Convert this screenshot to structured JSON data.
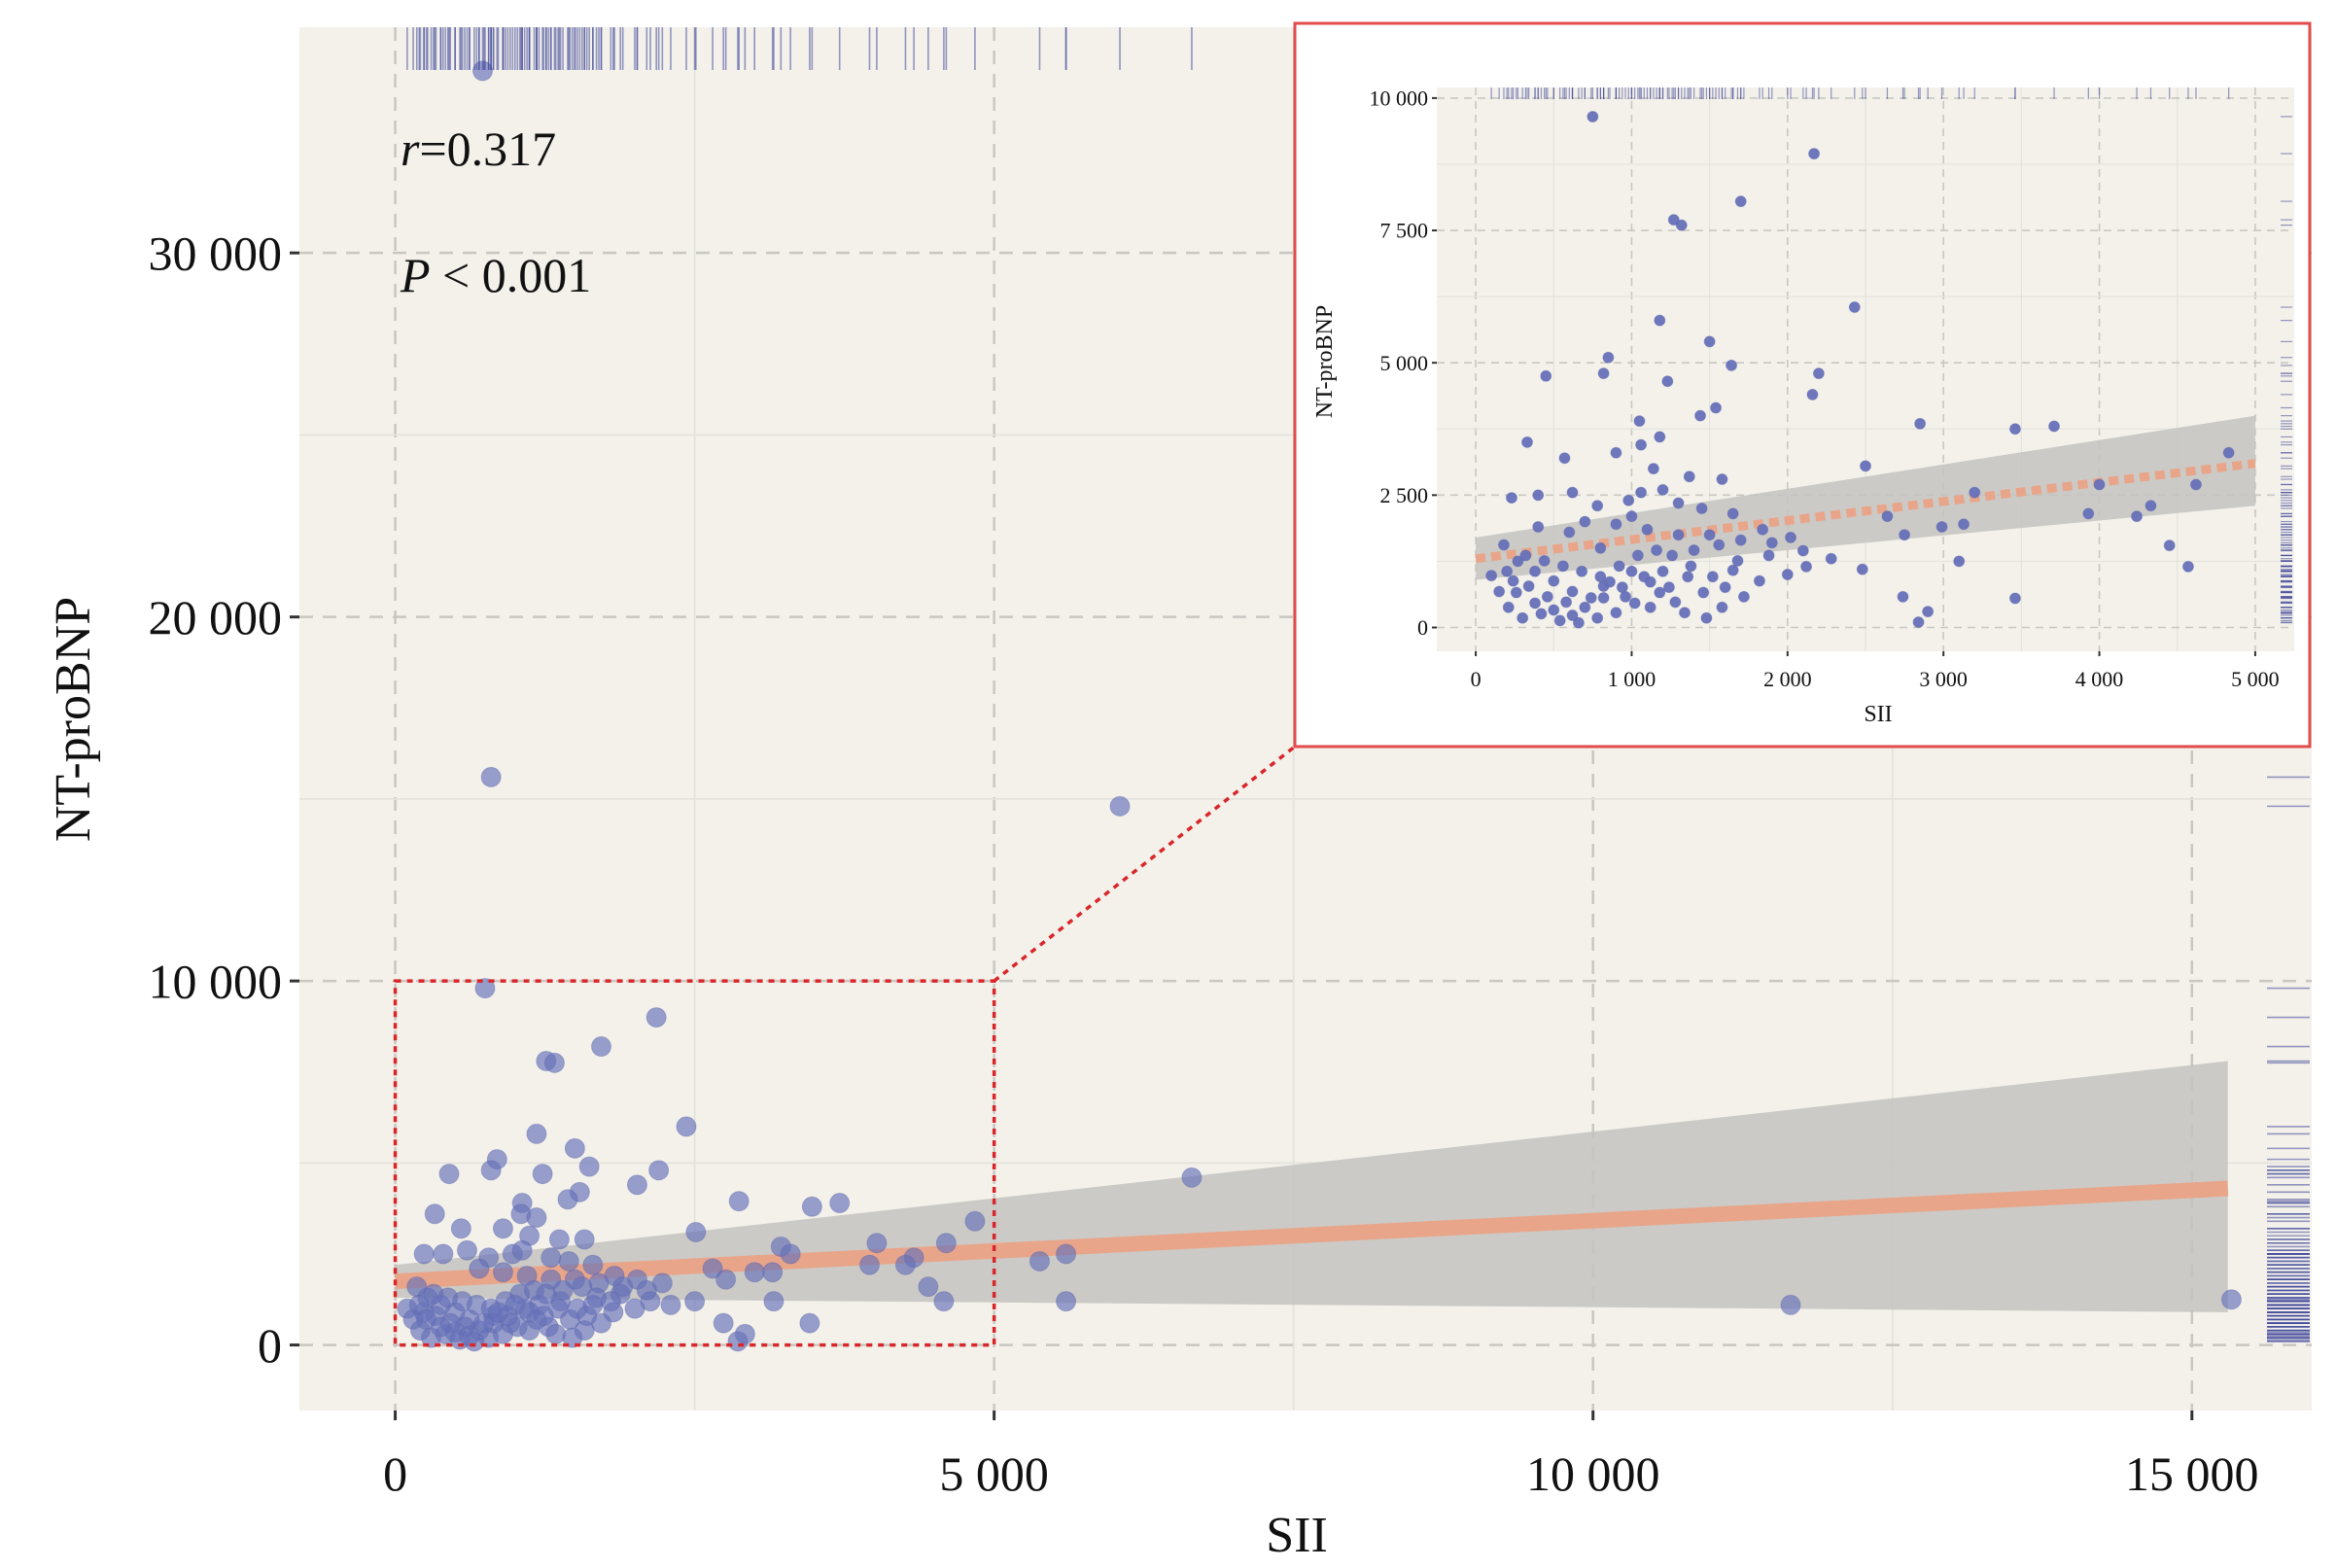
{
  "chart_data": [
    {
      "type": "scatter",
      "xlabel": "SII",
      "ylabel": "NT-proBNP",
      "xlim": [
        -800,
        16000
      ],
      "ylim": [
        -1800,
        36200
      ],
      "x_ticks": [
        0,
        5000,
        10000,
        15000
      ],
      "x_tick_labels": [
        "0",
        "5 000",
        "10 000",
        "15 000"
      ],
      "y_ticks": [
        0,
        10000,
        20000,
        30000
      ],
      "y_tick_labels": [
        "0",
        "10 000",
        "20 000",
        "30 000"
      ],
      "grid": true,
      "annotations": {
        "r_symbol": "r",
        "r_value": "=0.317",
        "p_symbol": "P",
        "p_value": " < 0.001"
      },
      "fit": {
        "x": [
          0,
          15300
        ],
        "y": [
          1750,
          4300
        ],
        "ci_low_end": 900,
        "ci_high_end": 7800,
        "ci_at_zero": [
          1300,
          2200
        ]
      },
      "zoom_region": {
        "x": [
          0,
          5000
        ],
        "y": [
          0,
          10000
        ]
      },
      "points": [
        [
          730,
          35000
        ],
        [
          800,
          15600
        ],
        [
          6050,
          14800
        ],
        [
          750,
          9800
        ],
        [
          2180,
          9000
        ],
        [
          1260,
          7800
        ],
        [
          1330,
          7750
        ],
        [
          1720,
          8200
        ],
        [
          2430,
          6000
        ],
        [
          1180,
          5800
        ],
        [
          1500,
          5400
        ],
        [
          850,
          5100
        ],
        [
          800,
          4800
        ],
        [
          450,
          4700
        ],
        [
          1620,
          4900
        ],
        [
          1230,
          4700
        ],
        [
          2200,
          4800
        ],
        [
          6650,
          4600
        ],
        [
          1060,
          3900
        ],
        [
          1540,
          4200
        ],
        [
          2020,
          4400
        ],
        [
          1440,
          4000
        ],
        [
          3710,
          3900
        ],
        [
          3480,
          3800
        ],
        [
          2870,
          3950
        ],
        [
          1050,
          3600
        ],
        [
          330,
          3600
        ],
        [
          1180,
          3500
        ],
        [
          900,
          3200
        ],
        [
          550,
          3200
        ],
        [
          1120,
          3000
        ],
        [
          1370,
          2900
        ],
        [
          1580,
          2900
        ],
        [
          2510,
          3100
        ],
        [
          3220,
          2700
        ],
        [
          600,
          2600
        ],
        [
          780,
          2400
        ],
        [
          400,
          2500
        ],
        [
          240,
          2500
        ],
        [
          980,
          2500
        ],
        [
          1060,
          2600
        ],
        [
          4020,
          2800
        ],
        [
          4600,
          2800
        ],
        [
          4840,
          3400
        ],
        [
          1300,
          2400
        ],
        [
          1450,
          2300
        ],
        [
          1650,
          2200
        ],
        [
          1830,
          1900
        ],
        [
          2020,
          1800
        ],
        [
          2230,
          1700
        ],
        [
          2650,
          2100
        ],
        [
          3000,
          2000
        ],
        [
          3150,
          2000
        ],
        [
          3960,
          2200
        ],
        [
          4330,
          2400
        ],
        [
          4260,
          2200
        ],
        [
          700,
          2100
        ],
        [
          900,
          2000
        ],
        [
          1100,
          1900
        ],
        [
          1300,
          1800
        ],
        [
          1500,
          1800
        ],
        [
          1700,
          1700
        ],
        [
          1900,
          1600
        ],
        [
          2100,
          1500
        ],
        [
          2500,
          1200
        ],
        [
          2760,
          1800
        ],
        [
          3160,
          1200
        ],
        [
          4450,
          1600
        ],
        [
          4580,
          1200
        ],
        [
          5380,
          2300
        ],
        [
          5600,
          2500
        ],
        [
          5600,
          1200
        ],
        [
          11650,
          1100
        ],
        [
          15330,
          1250
        ],
        [
          3460,
          600
        ],
        [
          2920,
          300
        ],
        [
          2740,
          600
        ],
        [
          2860,
          100
        ],
        [
          2130,
          1200
        ],
        [
          1820,
          900
        ],
        [
          1650,
          1100
        ],
        [
          1460,
          700
        ],
        [
          1280,
          500
        ],
        [
          1120,
          400
        ],
        [
          960,
          600
        ],
        [
          820,
          800
        ],
        [
          620,
          700
        ],
        [
          500,
          900
        ],
        [
          380,
          1100
        ],
        [
          270,
          1300
        ],
        [
          180,
          1600
        ],
        [
          100,
          1000
        ],
        [
          150,
          700
        ],
        [
          210,
          400
        ],
        [
          300,
          200
        ],
        [
          420,
          300
        ],
        [
          540,
          150
        ],
        [
          660,
          100
        ],
        [
          780,
          200
        ],
        [
          900,
          300
        ],
        [
          1020,
          500
        ],
        [
          1180,
          700
        ],
        [
          1340,
          300
        ],
        [
          1480,
          200
        ],
        [
          1580,
          400
        ],
        [
          1720,
          600
        ],
        [
          240,
          900
        ],
        [
          340,
          800
        ],
        [
          460,
          600
        ],
        [
          580,
          500
        ],
        [
          700,
          400
        ],
        [
          820,
          600
        ],
        [
          940,
          800
        ],
        [
          1080,
          1000
        ],
        [
          1200,
          1100
        ],
        [
          1380,
          1200
        ],
        [
          1520,
          1000
        ],
        [
          1680,
          1300
        ],
        [
          1880,
          1400
        ],
        [
          320,
          1400
        ],
        [
          440,
          1300
        ],
        [
          560,
          1200
        ],
        [
          680,
          1100
        ],
        [
          800,
          1000
        ],
        [
          920,
          1200
        ],
        [
          1040,
          1400
        ],
        [
          1160,
          1500
        ],
        [
          1260,
          1400
        ],
        [
          1400,
          1500
        ],
        [
          1560,
          1600
        ],
        [
          200,
          1100
        ],
        [
          260,
          700
        ],
        [
          380,
          500
        ],
        [
          500,
          350
        ],
        [
          620,
          250
        ],
        [
          740,
          600
        ],
        [
          860,
          900
        ],
        [
          1000,
          1100
        ],
        [
          1120,
          900
        ],
        [
          1240,
          800
        ],
        [
          1360,
          1000
        ],
        [
          1600,
          800
        ],
        [
          1800,
          1200
        ],
        [
          2000,
          1000
        ],
        [
          2300,
          1100
        ],
        [
          3300,
          2500
        ]
      ]
    },
    {
      "type": "scatter",
      "xlabel": "SII",
      "ylabel": "NT-proBNP",
      "xlim": [
        -250,
        5250
      ],
      "ylim": [
        -450,
        10200
      ],
      "x_ticks": [
        0,
        1000,
        2000,
        3000,
        4000,
        5000
      ],
      "x_tick_labels": [
        "0",
        "1 000",
        "2 000",
        "3 000",
        "4 000",
        "5 000"
      ],
      "y_ticks": [
        0,
        2500,
        5000,
        7500,
        10000
      ],
      "y_tick_labels": [
        "0",
        "2 500",
        "5 000",
        "7 500",
        "10 000"
      ],
      "grid": true,
      "fit": {
        "x": [
          0,
          5000
        ],
        "y": [
          1300,
          3100
        ],
        "ci_low_end": 2300,
        "ci_high_end": 4000,
        "ci_at_zero": [
          900,
          1700
        ]
      },
      "points": [
        [
          750,
          9650
        ],
        [
          2170,
          8950
        ],
        [
          1700,
          8050
        ],
        [
          1270,
          7700
        ],
        [
          1320,
          7600
        ],
        [
          2430,
          6050
        ],
        [
          1180,
          5800
        ],
        [
          1500,
          5400
        ],
        [
          850,
          5100
        ],
        [
          820,
          4800
        ],
        [
          450,
          4750
        ],
        [
          1640,
          4950
        ],
        [
          1230,
          4650
        ],
        [
          2200,
          4800
        ],
        [
          2160,
          4400
        ],
        [
          1050,
          3900
        ],
        [
          1540,
          4150
        ],
        [
          1440,
          4000
        ],
        [
          3710,
          3800
        ],
        [
          3460,
          3750
        ],
        [
          2850,
          3850
        ],
        [
          1060,
          3450
        ],
        [
          330,
          3500
        ],
        [
          1180,
          3600
        ],
        [
          900,
          3300
        ],
        [
          570,
          3200
        ],
        [
          1140,
          3000
        ],
        [
          1370,
          2850
        ],
        [
          1580,
          2800
        ],
        [
          2500,
          3050
        ],
        [
          3200,
          2550
        ],
        [
          620,
          2550
        ],
        [
          780,
          2300
        ],
        [
          400,
          2500
        ],
        [
          230,
          2450
        ],
        [
          980,
          2400
        ],
        [
          1060,
          2550
        ],
        [
          4000,
          2700
        ],
        [
          4620,
          2700
        ],
        [
          4830,
          3300
        ],
        [
          1300,
          2350
        ],
        [
          1450,
          2250
        ],
        [
          1650,
          2150
        ],
        [
          1840,
          1850
        ],
        [
          2020,
          1700
        ],
        [
          2280,
          1300
        ],
        [
          2640,
          2100
        ],
        [
          2990,
          1900
        ],
        [
          3130,
          1950
        ],
        [
          3930,
          2150
        ],
        [
          4330,
          2300
        ],
        [
          4240,
          2100
        ],
        [
          700,
          2000
        ],
        [
          900,
          1950
        ],
        [
          1100,
          1850
        ],
        [
          1300,
          1750
        ],
        [
          1500,
          1750
        ],
        [
          1700,
          1650
        ],
        [
          1900,
          1600
        ],
        [
          2100,
          1450
        ],
        [
          2480,
          1100
        ],
        [
          2750,
          1750
        ],
        [
          3100,
          1250
        ],
        [
          4450,
          1550
        ],
        [
          4570,
          1150
        ],
        [
          3460,
          550
        ],
        [
          2900,
          300
        ],
        [
          2740,
          580
        ],
        [
          2840,
          100
        ],
        [
          2120,
          1150
        ],
        [
          1820,
          880
        ],
        [
          1650,
          1080
        ],
        [
          1460,
          660
        ],
        [
          1280,
          480
        ],
        [
          1120,
          380
        ],
        [
          960,
          580
        ],
        [
          820,
          780
        ],
        [
          620,
          680
        ],
        [
          500,
          880
        ],
        [
          380,
          1060
        ],
        [
          270,
          1250
        ],
        [
          180,
          1560
        ],
        [
          100,
          980
        ],
        [
          150,
          680
        ],
        [
          210,
          380
        ],
        [
          300,
          180
        ],
        [
          420,
          260
        ],
        [
          540,
          130
        ],
        [
          660,
          90
        ],
        [
          780,
          180
        ],
        [
          900,
          280
        ],
        [
          1020,
          460
        ],
        [
          1180,
          660
        ],
        [
          1340,
          280
        ],
        [
          1480,
          180
        ],
        [
          1580,
          380
        ],
        [
          1720,
          580
        ],
        [
          240,
          880
        ],
        [
          340,
          780
        ],
        [
          460,
          580
        ],
        [
          580,
          480
        ],
        [
          700,
          380
        ],
        [
          820,
          560
        ],
        [
          940,
          760
        ],
        [
          1080,
          960
        ],
        [
          1200,
          1060
        ],
        [
          1380,
          1160
        ],
        [
          1520,
          960
        ],
        [
          1680,
          1260
        ],
        [
          1880,
          1360
        ],
        [
          320,
          1360
        ],
        [
          440,
          1260
        ],
        [
          560,
          1160
        ],
        [
          680,
          1060
        ],
        [
          800,
          960
        ],
        [
          920,
          1160
        ],
        [
          1040,
          1360
        ],
        [
          1160,
          1460
        ],
        [
          1260,
          1360
        ],
        [
          1400,
          1460
        ],
        [
          1560,
          1560
        ],
        [
          200,
          1060
        ],
        [
          260,
          660
        ],
        [
          380,
          460
        ],
        [
          500,
          330
        ],
        [
          620,
          230
        ],
        [
          740,
          560
        ],
        [
          860,
          860
        ],
        [
          1000,
          1060
        ],
        [
          1120,
          860
        ],
        [
          1240,
          760
        ],
        [
          1360,
          960
        ],
        [
          1600,
          760
        ],
        [
          2000,
          1000
        ],
        [
          600,
          1800
        ],
        [
          1000,
          2100
        ],
        [
          1200,
          2600
        ],
        [
          400,
          1900
        ],
        [
          800,
          1500
        ]
      ]
    }
  ]
}
